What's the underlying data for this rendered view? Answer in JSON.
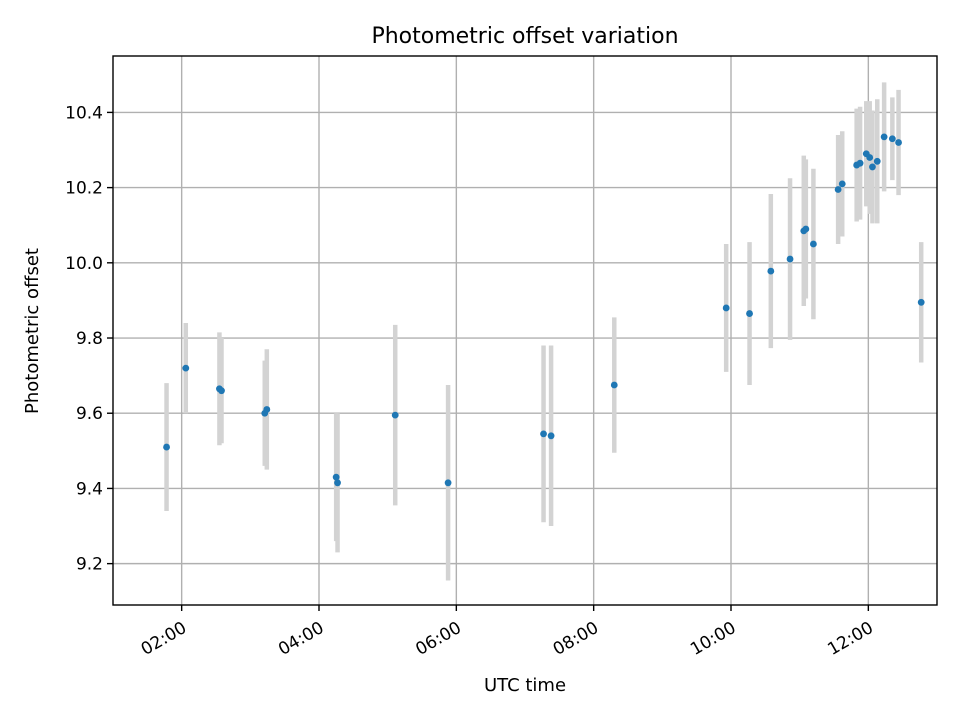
{
  "chart_data": {
    "type": "scatter",
    "title": "Photometric offset variation",
    "xlabel": "UTC time",
    "ylabel": "Photometric offset",
    "x_unit": "hours UTC",
    "xlim": [
      1.0,
      13.0
    ],
    "ylim": [
      9.09,
      10.55
    ],
    "grid": true,
    "marker_color": "#1f77b4",
    "errorbar_color": "#d3d3d3",
    "x_ticks": [
      {
        "value": 2,
        "label": "02:00"
      },
      {
        "value": 4,
        "label": "04:00"
      },
      {
        "value": 6,
        "label": "06:00"
      },
      {
        "value": 8,
        "label": "08:00"
      },
      {
        "value": 10,
        "label": "10:00"
      },
      {
        "value": 12,
        "label": "12:00"
      }
    ],
    "y_ticks": [
      {
        "value": 9.2,
        "label": "9.2"
      },
      {
        "value": 9.4,
        "label": "9.4"
      },
      {
        "value": 9.6,
        "label": "9.6"
      },
      {
        "value": 9.8,
        "label": "9.8"
      },
      {
        "value": 10.0,
        "label": "10.0"
      },
      {
        "value": 10.2,
        "label": "10.2"
      },
      {
        "value": 10.4,
        "label": "10.4"
      }
    ],
    "series": [
      {
        "points": [
          {
            "x": 1.78,
            "y": 9.51,
            "err": 0.17
          },
          {
            "x": 2.06,
            "y": 9.72,
            "err": 0.12
          },
          {
            "x": 2.55,
            "y": 9.665,
            "err": 0.15
          },
          {
            "x": 2.58,
            "y": 9.66,
            "err": 0.14
          },
          {
            "x": 3.21,
            "y": 9.6,
            "err": 0.14
          },
          {
            "x": 3.24,
            "y": 9.61,
            "err": 0.16
          },
          {
            "x": 4.25,
            "y": 9.43,
            "err": 0.17
          },
          {
            "x": 4.27,
            "y": 9.415,
            "err": 0.185
          },
          {
            "x": 5.11,
            "y": 9.595,
            "err": 0.24
          },
          {
            "x": 5.88,
            "y": 9.415,
            "err": 0.26
          },
          {
            "x": 7.27,
            "y": 9.545,
            "err": 0.235
          },
          {
            "x": 7.38,
            "y": 9.54,
            "err": 0.24
          },
          {
            "x": 8.3,
            "y": 9.675,
            "err": 0.18
          },
          {
            "x": 9.93,
            "y": 9.88,
            "err": 0.17
          },
          {
            "x": 10.27,
            "y": 9.865,
            "err": 0.19
          },
          {
            "x": 10.58,
            "y": 9.978,
            "err": 0.205
          },
          {
            "x": 10.86,
            "y": 10.01,
            "err": 0.215
          },
          {
            "x": 11.06,
            "y": 10.085,
            "err": 0.2
          },
          {
            "x": 11.09,
            "y": 10.09,
            "err": 0.185
          },
          {
            "x": 11.2,
            "y": 10.05,
            "err": 0.2
          },
          {
            "x": 11.56,
            "y": 10.195,
            "err": 0.145
          },
          {
            "x": 11.62,
            "y": 10.21,
            "err": 0.14
          },
          {
            "x": 11.83,
            "y": 10.26,
            "err": 0.15
          },
          {
            "x": 11.88,
            "y": 10.265,
            "err": 0.15
          },
          {
            "x": 11.97,
            "y": 10.29,
            "err": 0.14
          },
          {
            "x": 12.02,
            "y": 10.28,
            "err": 0.15
          },
          {
            "x": 12.06,
            "y": 10.255,
            "err": 0.15
          },
          {
            "x": 12.13,
            "y": 10.27,
            "err": 0.165
          },
          {
            "x": 12.23,
            "y": 10.335,
            "err": 0.145
          },
          {
            "x": 12.35,
            "y": 10.33,
            "err": 0.11
          },
          {
            "x": 12.44,
            "y": 10.32,
            "err": 0.14
          },
          {
            "x": 12.77,
            "y": 9.895,
            "err": 0.16
          }
        ]
      }
    ]
  }
}
